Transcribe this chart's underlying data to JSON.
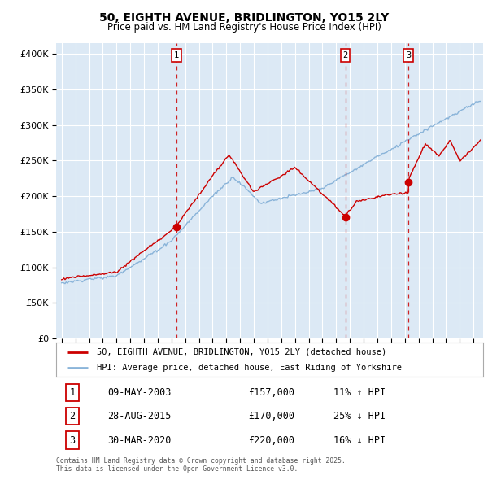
{
  "title": "50, EIGHTH AVENUE, BRIDLINGTON, YO15 2LY",
  "subtitle": "Price paid vs. HM Land Registry's House Price Index (HPI)",
  "legend_line1": "50, EIGHTH AVENUE, BRIDLINGTON, YO15 2LY (detached house)",
  "legend_line2": "HPI: Average price, detached house, East Riding of Yorkshire",
  "transaction1_date": "09-MAY-2003",
  "transaction1_price": "£157,000",
  "transaction1_hpi": "11% ↑ HPI",
  "transaction2_date": "28-AUG-2015",
  "transaction2_price": "£170,000",
  "transaction2_hpi": "25% ↓ HPI",
  "transaction3_date": "30-MAR-2020",
  "transaction3_price": "£220,000",
  "transaction3_hpi": "16% ↓ HPI",
  "footnote1": "Contains HM Land Registry data © Crown copyright and database right 2025.",
  "footnote2": "This data is licensed under the Open Government Licence v3.0.",
  "bg_color": "#dce9f5",
  "fig_bg_color": "#ffffff",
  "red_line_color": "#cc0000",
  "blue_line_color": "#8ab4d9",
  "vline_color": "#cc0000",
  "marker_color": "#cc0000",
  "grid_color": "#ffffff",
  "transaction1_year": 2003.37,
  "transaction2_year": 2015.66,
  "transaction3_year": 2020.25,
  "transaction1_value": 157000,
  "transaction2_value": 170000,
  "transaction3_value": 220000,
  "yticks": [
    0,
    50000,
    100000,
    150000,
    200000,
    250000,
    300000,
    350000,
    400000
  ],
  "ylim_max": 415000,
  "start_year": 1995,
  "end_year": 2025
}
